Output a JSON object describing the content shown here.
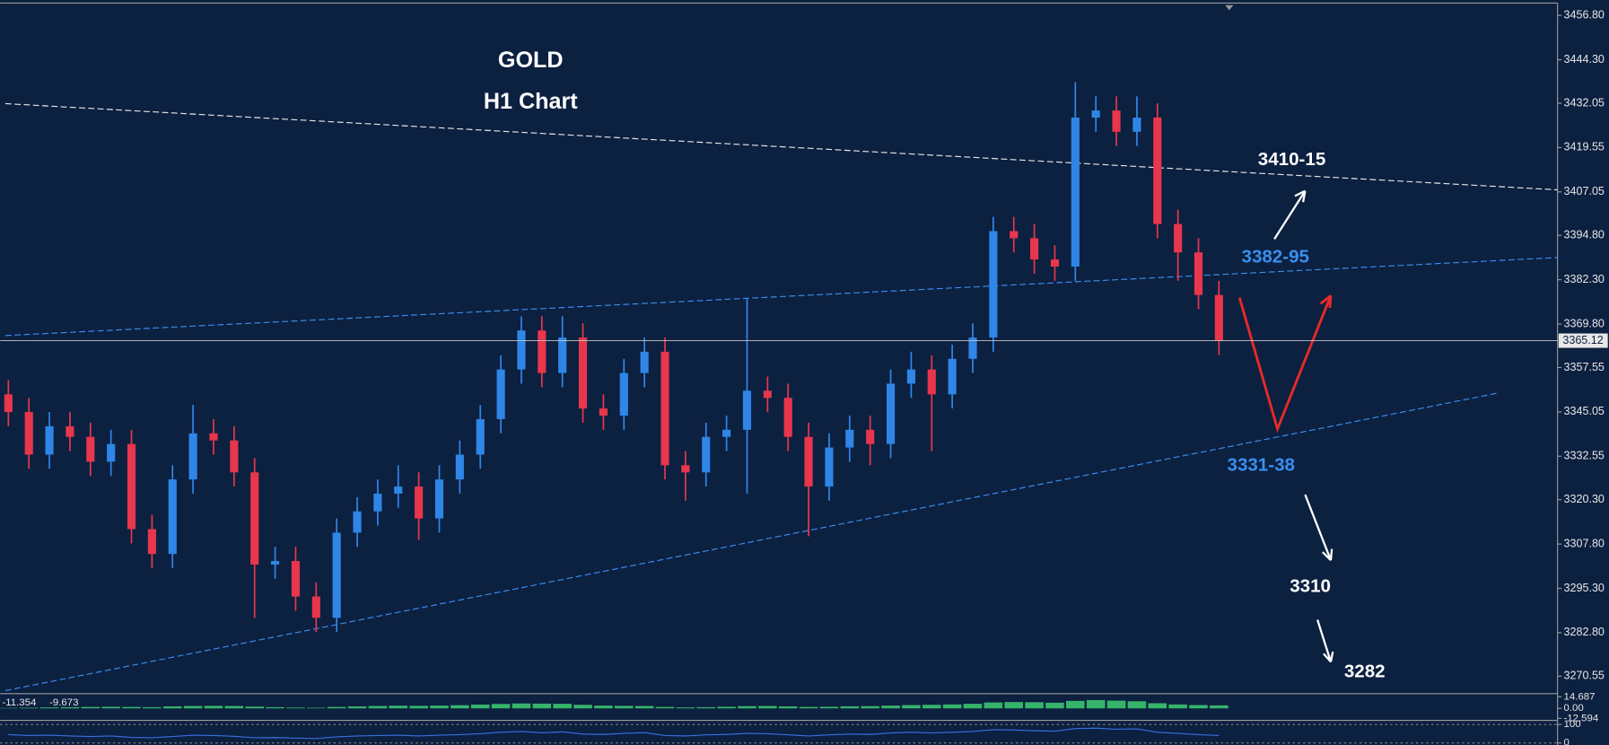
{
  "chart_data": [
    {
      "type": "candlestick",
      "title": "GOLD",
      "subtitle": "H1 Chart",
      "up_color": "#2f86e6",
      "down_color": "#e8364c",
      "open": [
        3350,
        3345,
        3333,
        3341,
        3338,
        3331,
        3336,
        3312,
        3305,
        3326,
        3339,
        3337,
        3328,
        3302,
        3303,
        3293,
        3287,
        3311,
        3317,
        3322,
        3324,
        3315,
        3326,
        3333,
        3343,
        3357,
        3368,
        3356,
        3366,
        3346,
        3344,
        3356,
        3362,
        3330,
        3328,
        3338,
        3340,
        3351,
        3349,
        3338,
        3324,
        3335,
        3340,
        3336,
        3353,
        3357,
        3350,
        3360,
        3366,
        3396,
        3394,
        3388,
        3386,
        3428,
        3430,
        3424,
        3428,
        3398,
        3390,
        3378
      ],
      "high": [
        3354,
        3349,
        3345,
        3345,
        3342,
        3340,
        3340,
        3316,
        3330,
        3347,
        3343,
        3341,
        3332,
        3307,
        3307,
        3297,
        3315,
        3321,
        3326,
        3330,
        3328,
        3330,
        3337,
        3347,
        3361,
        3372,
        3372,
        3372,
        3370,
        3350,
        3360,
        3366,
        3366,
        3334,
        3342,
        3344,
        3377,
        3355,
        3353,
        3342,
        3339,
        3344,
        3344,
        3357,
        3362,
        3361,
        3364,
        3370,
        3400,
        3400,
        3398,
        3392,
        3438,
        3434,
        3434,
        3434,
        3432,
        3402,
        3394,
        3382
      ],
      "low": [
        3341,
        3329,
        3329,
        3334,
        3327,
        3327,
        3308,
        3301,
        3301,
        3322,
        3333,
        3324,
        3287,
        3298,
        3289,
        3283,
        3283,
        3307,
        3313,
        3318,
        3309,
        3311,
        3322,
        3329,
        3339,
        3353,
        3352,
        3352,
        3342,
        3340,
        3340,
        3352,
        3326,
        3320,
        3324,
        3334,
        3322,
        3345,
        3334,
        3310,
        3320,
        3331,
        3330,
        3332,
        3349,
        3334,
        3346,
        3356,
        3362,
        3390,
        3384,
        3382,
        3382,
        3424,
        3420,
        3420,
        3394,
        3382,
        3374,
        3361
      ],
      "close": [
        3345,
        3333,
        3341,
        3338,
        3331,
        3336,
        3312,
        3305,
        3326,
        3339,
        3337,
        3328,
        3302,
        3303,
        3293,
        3287,
        3311,
        3317,
        3322,
        3324,
        3315,
        3326,
        3333,
        3343,
        3357,
        3368,
        3356,
        3366,
        3346,
        3344,
        3356,
        3362,
        3330,
        3328,
        3338,
        3340,
        3351,
        3349,
        3338,
        3324,
        3335,
        3340,
        3336,
        3353,
        3357,
        3350,
        3360,
        3366,
        3396,
        3394,
        3388,
        3386,
        3428,
        3430,
        3424,
        3428,
        3398,
        3390,
        3378,
        3365
      ],
      "last_price": 3365.12,
      "ylim": [
        3265.9,
        3459.7
      ],
      "yticks": [
        {
          "value": 3456.8,
          "label": "3456.80"
        },
        {
          "value": 3444.3,
          "label": "3444.30"
        },
        3432.05,
        3419.55,
        3407.05,
        {
          "value": 3394.8,
          "label": "3394.80"
        },
        {
          "value": 3382.3,
          "label": "3382.30"
        },
        {
          "value": 3369.8,
          "label": "3369.80"
        },
        3357.55,
        3345.05,
        3332.55,
        {
          "value": 3320.3,
          "label": "3320.30"
        },
        {
          "value": 3307.8,
          "label": "3307.80"
        },
        {
          "value": 3295.3,
          "label": "3295.30"
        },
        {
          "value": 3282.8,
          "label": "3282.80"
        },
        3270.55
      ],
      "annotations": [
        {
          "text": "3410-15",
          "color": "#ffffff"
        },
        {
          "text": "3382-95",
          "color": "#3a8ff0"
        },
        {
          "text": "3331-38",
          "color": "#3a8ff0"
        },
        {
          "text": "3310",
          "color": "#ffffff"
        },
        {
          "text": "3282",
          "color": "#ffffff"
        }
      ]
    },
    {
      "type": "histogram",
      "color": "#3ecf72",
      "current_values": [
        -11.354,
        -9.673
      ],
      "values": [
        0.5,
        0.8,
        1.2,
        1.5,
        1.8,
        2.0,
        1.8,
        1.5,
        2.5,
        3.0,
        3.2,
        3.0,
        2.2,
        1.5,
        1.0,
        0.8,
        1.8,
        2.5,
        3.0,
        3.4,
        3.2,
        3.5,
        4.0,
        4.8,
        5.6,
        6.2,
        6.0,
        5.8,
        4.5,
        3.5,
        3.2,
        3.0,
        1.8,
        1.2,
        1.5,
        2.0,
        2.8,
        3.0,
        2.5,
        1.8,
        2.0,
        2.6,
        2.8,
        3.5,
        4.2,
        4.5,
        5.0,
        5.8,
        7.5,
        8.0,
        7.8,
        7.2,
        9.5,
        10.5,
        9.8,
        9.0,
        6.5,
        5.0,
        4.2,
        3.8
      ],
      "ylim": [
        -12.594,
        14.687
      ],
      "yticks": [
        14.687,
        {
          "value": 0,
          "label": "0.00"
        },
        -12.594
      ]
    },
    {
      "type": "line",
      "color": "#3a6fe0",
      "values": [
        45,
        40,
        42,
        38,
        35,
        38,
        30,
        28,
        35,
        42,
        40,
        36,
        28,
        29,
        26,
        24,
        33,
        38,
        40,
        42,
        38,
        42,
        45,
        50,
        58,
        62,
        55,
        60,
        48,
        46,
        52,
        56,
        40,
        38,
        44,
        46,
        52,
        50,
        44,
        38,
        44,
        48,
        46,
        54,
        58,
        54,
        58,
        62,
        72,
        70,
        66,
        64,
        78,
        80,
        74,
        76,
        58,
        52,
        45,
        40
      ],
      "ylim": [
        0,
        100
      ],
      "yticks": [
        100,
        0
      ]
    }
  ]
}
